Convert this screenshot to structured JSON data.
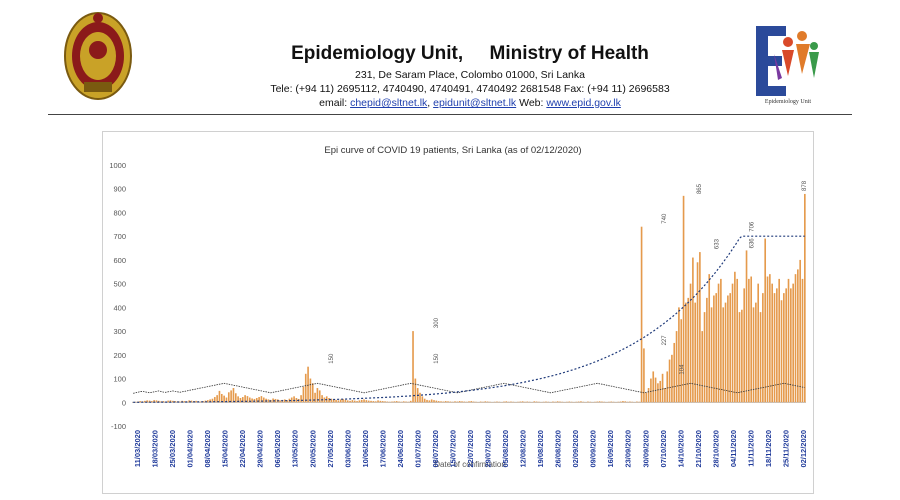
{
  "header": {
    "title": "Epidemiology Unit,     Ministry of Health",
    "address": "231, De Saram Place, Colombo 01000, Sri Lanka",
    "phone": "Tele: (+94 11) 2695112, 4740490, 4740491, 4740492 2681548  Fax: (+94 11) 2696583",
    "email_label": "email:",
    "email1": "chepid@sltnet.lk",
    "email2": "epidunit@sltnet.lk",
    "web_label": "Web:",
    "web": "www.epid.gov.lk",
    "logo_caption": "Epidemiology Unit",
    "logo_letter": "E",
    "colors": {
      "emblem_gold": "#c9a227",
      "emblem_red": "#8b1a1a",
      "logo_blue": "#2b4a9a",
      "logo_red": "#d94a2a"
    }
  },
  "chart_data": {
    "type": "bar",
    "title": "Epi curve of COVID 19 patients, Sri Lanka  (as of 02/12/2020)",
    "xlabel": "Date of confirmation",
    "ylabel": "",
    "ylim": [
      -100,
      1000
    ],
    "yticks": [
      -100,
      0,
      100,
      200,
      300,
      400,
      500,
      600,
      700,
      800,
      900,
      1000
    ],
    "xticks": [
      "11/03/2020",
      "18/03/2020",
      "25/03/2020",
      "01/04/2020",
      "08/04/2020",
      "15/04/2020",
      "22/04/2020",
      "29/04/2020",
      "06/05/2020",
      "13/05/2020",
      "20/05/2020",
      "27/05/2020",
      "03/06/2020",
      "10/06/2020",
      "17/06/2020",
      "24/06/2020",
      "01/07/2020",
      "08/07/2020",
      "15/07/2020",
      "22/07/2020",
      "29/07/2020",
      "05/08/2020",
      "12/08/2020",
      "19/08/2020",
      "26/08/2020",
      "02/09/2020",
      "09/09/2020",
      "16/09/2020",
      "23/09/2020",
      "30/09/2020",
      "07/10/2020",
      "14/10/2020",
      "21/10/2020",
      "28/10/2020",
      "04/11/2020",
      "11/11/2020",
      "18/11/2020",
      "25/11/2020",
      "02/12/2020"
    ],
    "colors": {
      "bars": "#e59a4c",
      "trend": "#1f3a7a",
      "moving_avg": "#333333",
      "axis": "#999999",
      "ticklabel": "#1f3a9a"
    },
    "series": [
      {
        "values": [
          1,
          2,
          3,
          5,
          4,
          6,
          8,
          7,
          5,
          9,
          8,
          6,
          4,
          5,
          3,
          7,
          8,
          6,
          5,
          4,
          3,
          6,
          5,
          4,
          8,
          7,
          5,
          6,
          4,
          3,
          5,
          7,
          9,
          12,
          15,
          22,
          30,
          48,
          35,
          28,
          20,
          42,
          50,
          60,
          38,
          25,
          18,
          22,
          30,
          26,
          20,
          16,
          14,
          18,
          22,
          26,
          20,
          15,
          12,
          10,
          16,
          14,
          12,
          8,
          10,
          12,
          9,
          15,
          20,
          25,
          18,
          14,
          30,
          65,
          120,
          150,
          100,
          80,
          40,
          60,
          50,
          30,
          20,
          25,
          18,
          15,
          12,
          10,
          8,
          12,
          14,
          10,
          8,
          6,
          9,
          7,
          5,
          8,
          10,
          12,
          9,
          7,
          6,
          5,
          4,
          8,
          6,
          5,
          4,
          3,
          2,
          3,
          4,
          5,
          3,
          2,
          4,
          3,
          2,
          6,
          300,
          100,
          60,
          40,
          25,
          15,
          10,
          8,
          12,
          9,
          7,
          5,
          4,
          3,
          5,
          4,
          3,
          2,
          4,
          3,
          5,
          4,
          3,
          2,
          4,
          5,
          3,
          2,
          1,
          3,
          2,
          4,
          3,
          2,
          1,
          2,
          3,
          2,
          1,
          3,
          4,
          2,
          3,
          2,
          1,
          2,
          3,
          4,
          2,
          3,
          2,
          1,
          4,
          3,
          2,
          1,
          2,
          3,
          2,
          1,
          3,
          2,
          4,
          3,
          2,
          1,
          2,
          3,
          2,
          1,
          2,
          3,
          4,
          2,
          1,
          3,
          2,
          1,
          2,
          3,
          4,
          3,
          2,
          1,
          2,
          3,
          2,
          1,
          2,
          3,
          5,
          4,
          2,
          3,
          2,
          1,
          3,
          2,
          740,
          227,
          40,
          60,
          100,
          130,
          104,
          80,
          90,
          120,
          60,
          130,
          180,
          200,
          250,
          300,
          400,
          350,
          870,
          420,
          440,
          500,
          610,
          420,
          590,
          633,
          300,
          380,
          440,
          540,
          400,
          450,
          460,
          500,
          520,
          400,
          420,
          450,
          460,
          500,
          550,
          520,
          380,
          390,
          480,
          640,
          520,
          530,
          400,
          420,
          500,
          380,
          460,
          690,
          530,
          540,
          500,
          460,
          480,
          520,
          430,
          460,
          480,
          520,
          480,
          500,
          540,
          560,
          600,
          520,
          878
        ]
      },
      {
        "values": [
          38,
          40,
          42,
          45,
          46,
          44,
          42,
          40,
          42,
          44,
          46,
          48,
          45,
          43,
          42,
          44,
          46,
          48,
          46,
          44,
          42,
          44,
          46,
          48,
          50,
          52,
          54,
          56,
          58,
          60,
          62,
          64,
          66,
          68,
          70,
          72,
          74,
          76,
          78,
          80,
          78,
          76,
          74,
          72,
          70,
          68,
          66,
          64,
          62,
          60,
          58,
          56,
          54,
          52,
          50,
          48,
          46,
          44,
          42,
          40,
          42,
          44,
          46,
          48,
          50,
          52,
          54,
          56,
          58,
          60,
          62,
          64,
          66,
          68,
          70,
          72,
          74,
          76,
          78,
          80,
          78,
          76,
          74,
          72,
          70,
          68,
          66,
          64,
          62,
          60,
          58,
          56,
          54,
          52,
          50,
          48,
          46,
          44,
          42,
          40,
          42,
          44,
          46,
          48,
          50,
          52,
          54,
          56,
          58,
          60,
          62,
          64,
          66,
          68,
          70,
          72,
          74,
          76,
          78,
          80,
          78,
          76,
          74,
          72,
          70,
          68,
          66,
          64,
          62,
          60,
          58,
          56,
          54,
          52,
          50,
          48,
          46,
          44,
          42,
          40,
          42,
          44,
          46,
          48,
          50,
          52,
          54,
          56,
          58,
          60,
          62,
          64,
          66,
          68,
          70,
          72,
          74,
          76,
          78,
          80,
          78,
          76,
          74,
          72,
          70,
          68,
          66,
          64,
          62,
          60,
          58,
          56,
          54,
          52,
          50,
          48,
          46,
          44,
          42,
          40,
          42,
          44,
          46,
          48,
          50,
          52,
          54,
          56,
          58,
          60,
          62,
          64,
          66,
          68,
          70,
          72,
          74,
          76,
          78,
          80,
          78,
          76,
          74,
          72,
          70,
          68,
          66,
          64,
          62,
          60,
          58,
          56,
          54,
          52,
          50,
          48,
          46,
          44,
          42,
          40,
          42,
          44,
          46,
          48,
          50,
          52,
          54,
          56,
          58,
          60,
          62,
          64,
          66,
          68,
          70,
          72,
          74,
          76,
          78,
          80,
          78,
          76,
          74,
          72,
          70,
          68,
          66,
          64,
          62,
          60,
          58,
          56,
          54,
          52,
          50,
          48,
          46,
          44,
          42,
          40,
          42,
          44,
          46,
          48,
          50,
          52,
          54,
          56,
          58,
          60,
          62,
          64,
          66,
          68,
          70,
          72,
          74,
          76,
          78,
          80,
          78,
          76,
          74,
          72,
          70,
          68,
          66,
          64,
          62,
          60,
          58,
          56,
          54,
          52,
          50,
          48,
          46,
          44,
          42,
          40,
          42,
          44,
          46,
          48,
          50,
          52,
          54,
          56,
          58
        ]
      }
    ],
    "peak_labels": [
      {
        "date": "27/05/2020",
        "value": 150
      },
      {
        "date": "08/07/2020",
        "value": 300
      },
      {
        "date": "08/07/2020",
        "value": 150
      },
      {
        "date": "07/10/2020",
        "value": 740
      },
      {
        "date": "07/10/2020",
        "value": 227
      },
      {
        "date": "14/10/2020",
        "value": 104
      },
      {
        "date": "21/10/2020",
        "value": 865
      },
      {
        "date": "28/10/2020",
        "value": 633
      },
      {
        "date": "11/11/2020",
        "value": 636
      },
      {
        "date": "11/11/2020",
        "value": 706
      },
      {
        "date": "02/12/2020",
        "value": 878
      }
    ],
    "legend": "none",
    "grid": false
  }
}
